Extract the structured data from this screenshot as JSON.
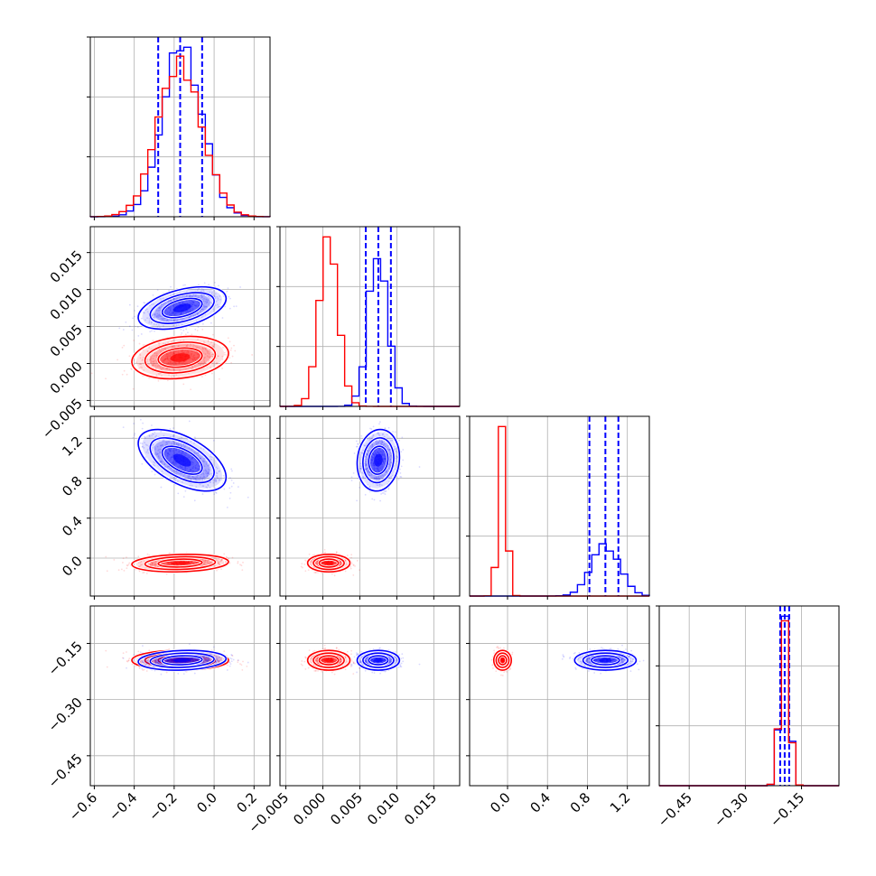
{
  "chart_data": {
    "type": "corner",
    "grid": true,
    "parameters": [
      {
        "range": [
          -0.62,
          0.28
        ],
        "ticks": [
          -0.6,
          -0.4,
          -0.2,
          0.0,
          0.2
        ],
        "tick_labels": [
          "−0.6",
          "−0.4",
          "−0.2",
          "0.0",
          "0.2"
        ]
      },
      {
        "range": [
          -0.0058,
          0.0185
        ],
        "ticks": [
          -0.005,
          0.0,
          0.005,
          0.01,
          0.015
        ],
        "tick_labels": [
          "−0.005",
          "0.000",
          "0.005",
          "0.010",
          "0.015"
        ]
      },
      {
        "range": [
          -0.38,
          1.42
        ],
        "ticks": [
          0.0,
          0.4,
          0.8,
          1.2
        ],
        "tick_labels": [
          "0.0",
          "0.4",
          "0.8",
          "1.2"
        ]
      },
      {
        "range": [
          -0.53,
          -0.05
        ],
        "ticks": [
          -0.45,
          -0.3,
          -0.15
        ],
        "tick_labels": [
          "−0.45",
          "−0.30",
          "−0.15"
        ]
      }
    ],
    "series": [
      {
        "color": "#ff0000",
        "mean": [
          -0.17,
          0.0008,
          -0.05,
          -0.195
        ],
        "std": [
          0.11,
          0.0013,
          0.04,
          0.012
        ],
        "quantiles": null
      },
      {
        "color": "#0000ff",
        "mean": [
          -0.16,
          0.0075,
          0.98,
          -0.195
        ],
        "std": [
          0.1,
          0.0013,
          0.14,
          0.012
        ],
        "quantiles": [
          [
            -0.28,
            -0.17,
            -0.06
          ],
          [
            0.0058,
            0.0075,
            0.0092
          ],
          [
            0.82,
            0.98,
            1.11
          ],
          [
            -0.207,
            -0.195,
            -0.183
          ]
        ]
      }
    ],
    "correlations": [
      {
        "pair": [
          0,
          1
        ],
        "series": [
          0.2,
          0.45
        ]
      },
      {
        "pair": [
          0,
          2
        ],
        "series": [
          0.15,
          -0.55
        ]
      },
      {
        "pair": [
          1,
          2
        ],
        "series": [
          0.0,
          0.1
        ]
      },
      {
        "pair": [
          0,
          3
        ],
        "series": [
          0.0,
          0.15
        ]
      },
      {
        "pair": [
          1,
          3
        ],
        "series": [
          0.0,
          0.0
        ]
      },
      {
        "pair": [
          2,
          3
        ],
        "series": [
          0.0,
          0.0
        ]
      }
    ]
  }
}
